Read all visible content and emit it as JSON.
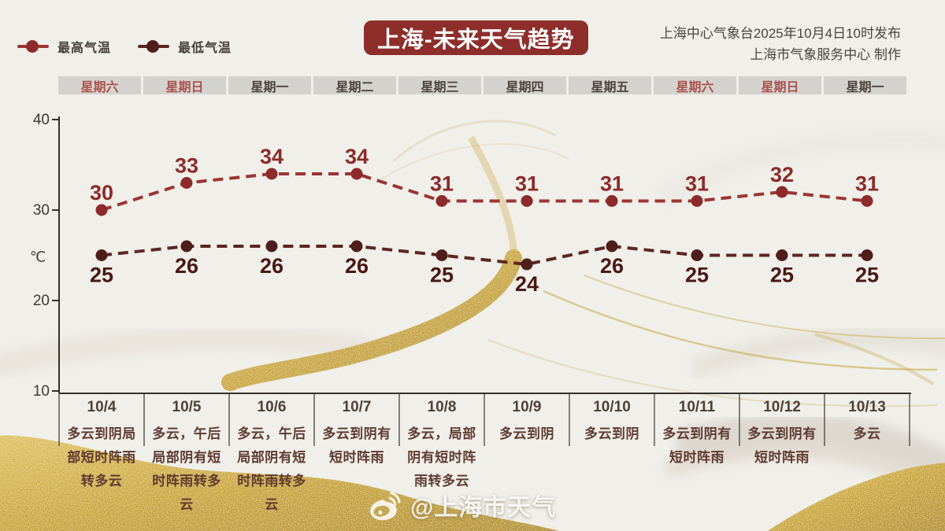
{
  "header": {
    "title": "上海-未来天气趋势",
    "source_line1": "上海中心气象台2025年10月4日10时发布",
    "source_line2": "上海市气象服务中心 制作"
  },
  "legend": {
    "max_label": "最高气温",
    "min_label": "最低气温"
  },
  "colors": {
    "title_bg": "#8d2e2a",
    "max_line": "#9b3533",
    "max_marker": "#8c2b29",
    "max_label": "#8c2b29",
    "min_line": "#5e2522",
    "min_marker": "#4f1d1a",
    "min_label": "#4a1815",
    "axis": "#35302a",
    "tick_text": "#3e3933",
    "divider": "#46403a",
    "weekend_text": "#a9524e",
    "weekday_text": "#4c443e",
    "gold": "#c29c34"
  },
  "chart_data": {
    "type": "line",
    "categories": [
      "星期六",
      "星期日",
      "星期一",
      "星期二",
      "星期三",
      "星期四",
      "星期五",
      "星期六",
      "星期日",
      "星期一"
    ],
    "series": [
      {
        "name": "最高气温",
        "values": [
          30,
          33,
          34,
          34,
          31,
          31,
          31,
          31,
          32,
          31
        ]
      },
      {
        "name": "最低气温",
        "values": [
          25,
          26,
          26,
          26,
          25,
          24,
          26,
          25,
          25,
          25
        ]
      }
    ],
    "ylabel": "℃",
    "yticks": [
      40,
      30,
      20,
      10
    ],
    "ylim": [
      10,
      40
    ],
    "grid": false,
    "legend_position": "top-left",
    "line_style": "dashed"
  },
  "days": [
    {
      "weekday": "星期六",
      "is_weekend": true,
      "date": "10/4",
      "weather": "多云到阴局部短时阵雨转多云"
    },
    {
      "weekday": "星期日",
      "is_weekend": true,
      "date": "10/5",
      "weather": "多云，午后局部阴有短时阵雨转多云"
    },
    {
      "weekday": "星期一",
      "is_weekend": false,
      "date": "10/6",
      "weather": "多云，午后局部阴有短时阵雨转多云"
    },
    {
      "weekday": "星期二",
      "is_weekend": false,
      "date": "10/7",
      "weather": "多云到阴有短时阵雨"
    },
    {
      "weekday": "星期三",
      "is_weekend": false,
      "date": "10/8",
      "weather": "多云，局部阴有短时阵雨转多云"
    },
    {
      "weekday": "星期四",
      "is_weekend": false,
      "date": "10/9",
      "weather": "多云到阴"
    },
    {
      "weekday": "星期五",
      "is_weekend": false,
      "date": "10/10",
      "weather": "多云到阴"
    },
    {
      "weekday": "星期六",
      "is_weekend": true,
      "date": "10/11",
      "weather": "多云到阴有短时阵雨"
    },
    {
      "weekday": "星期日",
      "is_weekend": true,
      "date": "10/12",
      "weather": "多云到阴有短时阵雨"
    },
    {
      "weekday": "星期一",
      "is_weekend": false,
      "date": "10/13",
      "weather": "多云"
    }
  ],
  "watermark": {
    "handle": "@上海市天气",
    "icon": "weibo-icon"
  }
}
